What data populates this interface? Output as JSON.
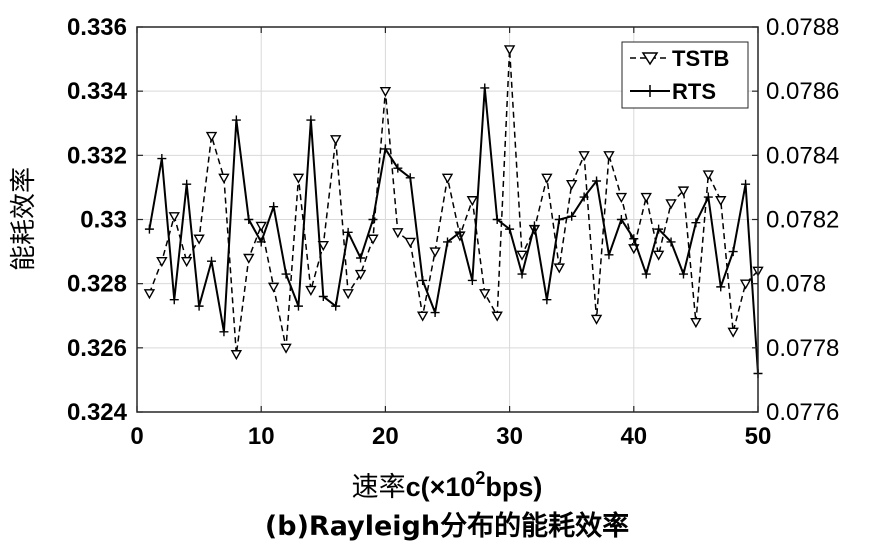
{
  "chart_data": {
    "type": "line",
    "caption": "(b)Rayleigh分布的能耗效率",
    "xlabel_main": "速率",
    "xlabel_unit_prefix": "c(×10",
    "xlabel_unit_exp": "2",
    "xlabel_unit_suffix": "bps)",
    "ylabel_left": "能耗效率",
    "xlim": [
      0,
      50
    ],
    "ylim_left": [
      0.324,
      0.336
    ],
    "ylim_right": [
      0.0776,
      0.0788
    ],
    "x_ticks": [
      "0",
      "10",
      "20",
      "30",
      "40",
      "50"
    ],
    "y_left_ticks": [
      "0.324",
      "0.326",
      "0.328",
      "0.33",
      "0.332",
      "0.334",
      "0.336"
    ],
    "y_right_ticks": [
      "0.0776",
      "0.0778",
      "0.078",
      "0.0782",
      "0.0784",
      "0.0786",
      "0.0788"
    ],
    "grid": true,
    "legend_position": "top-right",
    "x": [
      1,
      2,
      3,
      4,
      5,
      6,
      7,
      8,
      9,
      10,
      11,
      12,
      13,
      14,
      15,
      16,
      17,
      18,
      19,
      20,
      21,
      22,
      23,
      24,
      25,
      26,
      27,
      28,
      29,
      30,
      31,
      32,
      33,
      34,
      35,
      36,
      37,
      38,
      39,
      40,
      41,
      42,
      43,
      44,
      45,
      46,
      47,
      48,
      49,
      50
    ],
    "series": [
      {
        "name": "TSTB",
        "axis": "left",
        "style": "dashed",
        "marker": "triangle-down",
        "values": [
          0.3277,
          0.3287,
          0.3301,
          0.3287,
          0.3294,
          0.3326,
          0.3313,
          0.3258,
          0.3288,
          0.3298,
          0.3279,
          0.326,
          0.3313,
          0.3278,
          0.3292,
          0.3325,
          0.3277,
          0.3283,
          0.3294,
          0.334,
          0.3296,
          0.3293,
          0.327,
          0.329,
          0.3313,
          0.3295,
          0.3306,
          0.3277,
          0.327,
          0.3353,
          0.3289,
          0.3297,
          0.3313,
          0.3285,
          0.3311,
          0.332,
          0.3269,
          0.332,
          0.3307,
          0.3291,
          0.3307,
          0.3289,
          0.3305,
          0.3309,
          0.3268,
          0.3314,
          0.3306,
          0.3265,
          0.328,
          0.3284
        ]
      },
      {
        "name": "RTS",
        "axis": "right",
        "style": "solid",
        "marker": "plus",
        "values": [
          0.07817,
          0.07839,
          0.07795,
          0.07831,
          0.07793,
          0.07807,
          0.07785,
          0.07851,
          0.0782,
          0.07813,
          0.07824,
          0.07803,
          0.07793,
          0.07851,
          0.07796,
          0.07793,
          0.07816,
          0.07808,
          0.0782,
          0.07842,
          0.07836,
          0.07833,
          0.07801,
          0.07791,
          0.07813,
          0.07816,
          0.07801,
          0.07861,
          0.0782,
          0.07817,
          0.07803,
          0.07818,
          0.07795,
          0.0782,
          0.07821,
          0.07827,
          0.07832,
          0.07809,
          0.0782,
          0.07814,
          0.07803,
          0.07817,
          0.07813,
          0.07803,
          0.07819,
          0.07827,
          0.07799,
          0.0781,
          0.07831,
          0.07772
        ]
      }
    ]
  }
}
